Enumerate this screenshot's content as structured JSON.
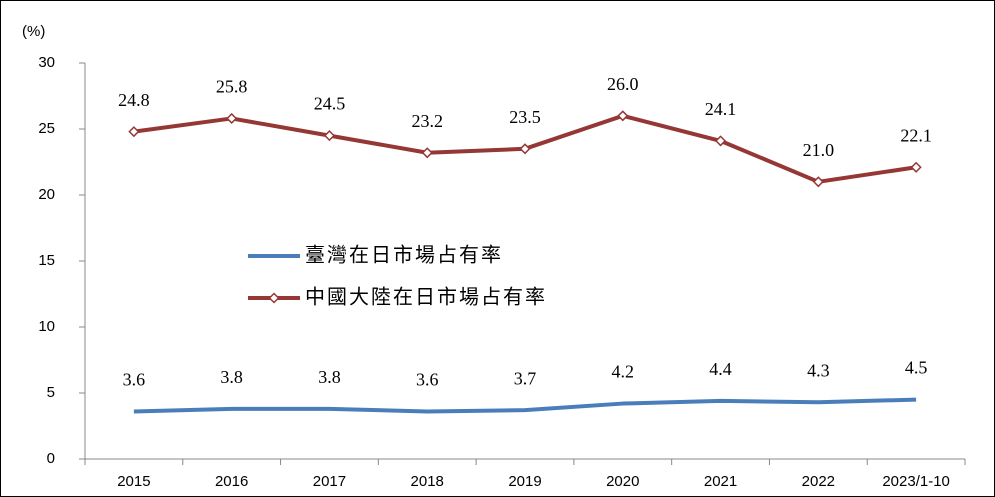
{
  "chart_data": {
    "type": "line",
    "y_label": "(%)",
    "categories": [
      "2015",
      "2016",
      "2017",
      "2018",
      "2019",
      "2020",
      "2021",
      "2022",
      "2023/1-10"
    ],
    "series": [
      {
        "name": "臺灣在日市場占有率",
        "color": "#4a7ebb",
        "marker": false,
        "values": [
          3.6,
          3.8,
          3.8,
          3.6,
          3.7,
          4.2,
          4.4,
          4.3,
          4.5
        ],
        "value_labels": [
          "3.6",
          "3.8",
          "3.8",
          "3.6",
          "3.7",
          "4.2",
          "4.4",
          "4.3",
          "4.5"
        ]
      },
      {
        "name": "中國大陸在日市場占有率",
        "color": "#953735",
        "marker": true,
        "values": [
          24.8,
          25.8,
          24.5,
          23.2,
          23.5,
          26.0,
          24.1,
          21.0,
          22.1
        ],
        "value_labels": [
          "24.8",
          "25.8",
          "24.5",
          "23.2",
          "23.5",
          "26.0",
          "24.1",
          "21.0",
          "22.1"
        ]
      }
    ],
    "ylim": [
      0,
      30
    ],
    "yticks": [
      0,
      5,
      10,
      15,
      20,
      25,
      30
    ],
    "grid": false
  }
}
